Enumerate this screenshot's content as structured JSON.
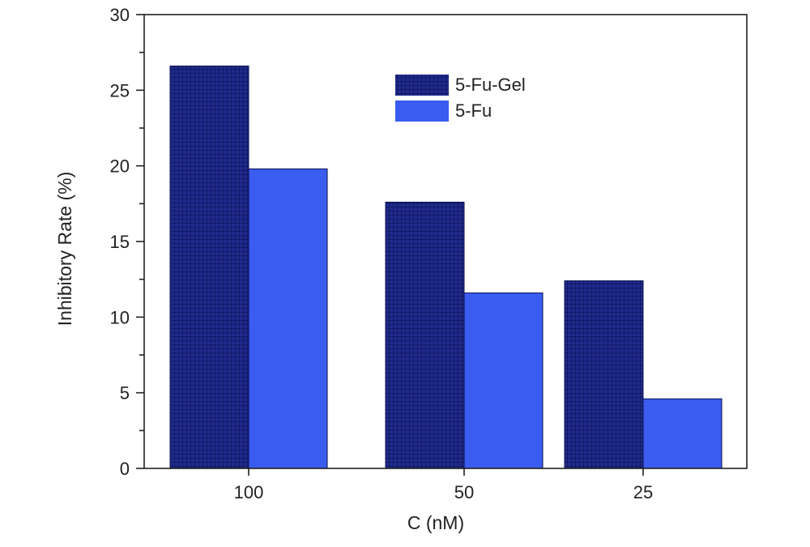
{
  "chart_data": {
    "type": "bar",
    "title": "",
    "xlabel": "C (nM)",
    "ylabel": "Inhibitory Rate (%)",
    "categories": [
      "100",
      "50",
      "25"
    ],
    "series": [
      {
        "name": "5-Fu-Gel",
        "values": [
          26.6,
          17.6,
          12.4
        ],
        "color": "#1f2a8c",
        "pattern": "grid"
      },
      {
        "name": "5-Fu",
        "values": [
          19.8,
          11.6,
          4.6
        ],
        "color": "#3a5cf0",
        "pattern": "solid"
      }
    ],
    "ylim": [
      0,
      30
    ],
    "yticks": [
      0,
      5,
      10,
      15,
      20,
      25,
      30
    ],
    "grid": false,
    "legend_position": "top-right",
    "frame": "box"
  }
}
